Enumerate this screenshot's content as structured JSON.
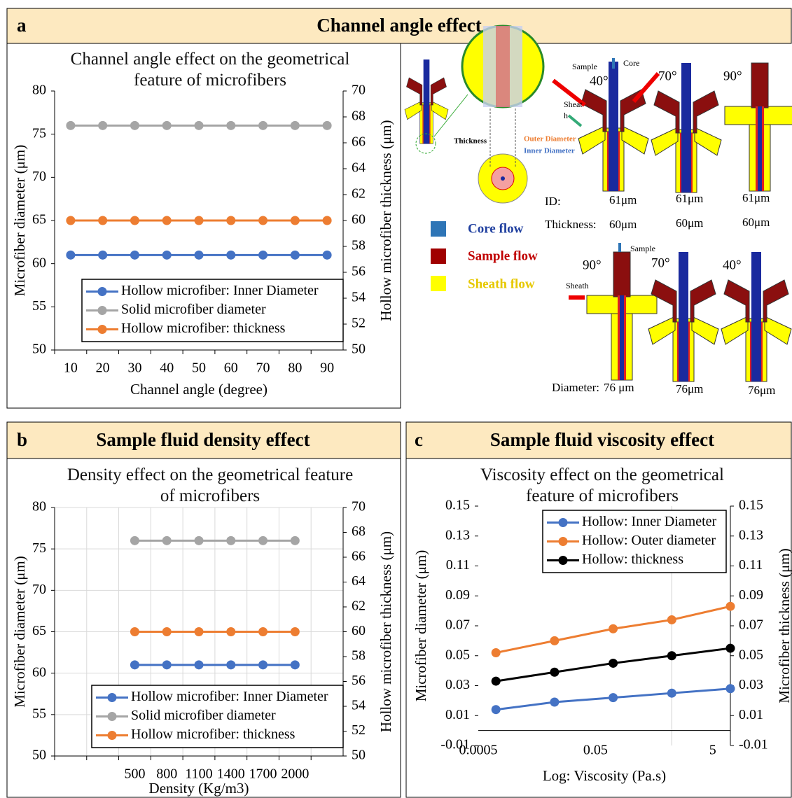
{
  "panels": [
    {
      "letter": "a",
      "title": "Channel angle effect"
    },
    {
      "letter": "b",
      "title": "Sample fluid density effect"
    },
    {
      "letter": "c",
      "title": "Sample fluid viscosity effect"
    }
  ],
  "chart_data": [
    {
      "type": "line",
      "title": "Channel angle effect on the geometrical feature of microfibers",
      "categories": [
        "10",
        "20",
        "30",
        "40",
        "50",
        "60",
        "70",
        "80",
        "90"
      ],
      "xlabel": "Channel angle (degree)",
      "ylabel": "Microfiber diameter (μm)",
      "y2label": "Hollow microfiber thickness (μm)",
      "ylim": [
        50,
        80
      ],
      "yticks": [
        50,
        55,
        60,
        65,
        70,
        75,
        80
      ],
      "y2lim": [
        50,
        70
      ],
      "y2ticks": [
        50,
        52,
        54,
        56,
        58,
        60,
        62,
        64,
        66,
        68,
        70
      ],
      "grid": false,
      "legend": "lower right",
      "series": [
        {
          "name": "Hollow microfiber: Inner Diameter",
          "color": "#4472c4",
          "values": [
            61,
            61,
            61,
            61,
            61,
            61,
            61,
            61,
            61
          ]
        },
        {
          "name": "Solid microfiber diameter",
          "color": "#a5a5a5",
          "values": [
            76,
            76,
            76,
            76,
            76,
            76,
            76,
            76,
            76
          ]
        },
        {
          "name": "Hollow microfiber: thickness",
          "color": "#ed7d31",
          "axis": "y2",
          "values": [
            60,
            60,
            60,
            60,
            60,
            60,
            60,
            60,
            60
          ]
        }
      ]
    },
    {
      "type": "line",
      "title": "Density effect on the geometrical feature of microfibers",
      "categories": [
        null,
        null,
        "500",
        "800",
        "1100",
        "1400",
        "1700",
        "2000",
        null
      ],
      "xlabel": "Density (Kg/m3)",
      "ylabel": "Microfiber diameter (μm)",
      "y2label": "Hollow microfiber thickness (μm)",
      "ylim": [
        50,
        80
      ],
      "yticks": [
        50,
        55,
        60,
        65,
        70,
        75,
        80
      ],
      "y2lim": [
        50,
        70
      ],
      "y2ticks": [
        50,
        52,
        54,
        56,
        58,
        60,
        62,
        64,
        66,
        68,
        70
      ],
      "grid": true,
      "legend": "lower right",
      "series": [
        {
          "name": "Hollow microfiber: Inner Diameter",
          "color": "#4472c4",
          "values": [
            null,
            null,
            61,
            61,
            61,
            61,
            61,
            61,
            null
          ]
        },
        {
          "name": "Solid microfiber diameter",
          "color": "#a5a5a5",
          "values": [
            null,
            null,
            76,
            76,
            76,
            76,
            76,
            76,
            null
          ]
        },
        {
          "name": "Hollow microfiber: thickness",
          "color": "#ed7d31",
          "axis": "y2",
          "values": [
            null,
            null,
            60,
            60,
            60,
            60,
            60,
            60,
            null
          ]
        }
      ]
    },
    {
      "type": "line",
      "title": "Viscosity effect on the geometrical feature of microfibers",
      "x": [
        0.001,
        0.01,
        0.1,
        1,
        10
      ],
      "xscale": "log",
      "xlim": [
        0.0005,
        10
      ],
      "xticks": [
        0.0005,
        0.05,
        5
      ],
      "xlabel": "Log: Viscosity (Pa.s)",
      "ylabel": "Microfiber diameter (μm)",
      "y2label": "Microfiber thickness (μm)",
      "ylim": [
        -0.01,
        0.15
      ],
      "yticks": [
        -0.01,
        0.01,
        0.03,
        0.05,
        0.07,
        0.09,
        0.11,
        0.13,
        0.15
      ],
      "y2lim": [
        -0.01,
        0.15
      ],
      "y2ticks": [
        -0.01,
        0.01,
        0.03,
        0.05,
        0.07,
        0.09,
        0.11,
        0.13,
        0.15
      ],
      "grid": false,
      "legend": "upper right",
      "series": [
        {
          "name": "Hollow: Inner Diameter",
          "color": "#4472c4",
          "values": [
            0.014,
            0.019,
            0.022,
            0.025,
            0.028
          ]
        },
        {
          "name": "Hollow: Outer diameter",
          "color": "#ed7d31",
          "values": [
            0.052,
            0.06,
            0.068,
            0.074,
            0.083
          ]
        },
        {
          "name": "Hollow: thickness",
          "color": "#000000",
          "axis": "y2",
          "values": [
            0.033,
            0.039,
            0.045,
            0.05,
            0.055
          ]
        }
      ]
    }
  ],
  "diagram": {
    "inset": {
      "thickness": "Thickness",
      "outer": "Outer Diameter",
      "inner": "Inner Diameter"
    },
    "top": {
      "sample": "Sample",
      "core": "Core",
      "sheath": [
        "Sheat",
        "h"
      ],
      "angles": [
        "40°",
        "70°",
        "90°"
      ],
      "id_label": "ID:",
      "ids": [
        "61μm",
        "61μm",
        "61μm"
      ],
      "thickness_label": "Thickness:",
      "thicknesses": [
        "60μm",
        "60μm",
        "60μm"
      ]
    },
    "legend": [
      "Core flow",
      "Sample flow",
      "Sheath flow"
    ],
    "bottom": {
      "sample": "Sample",
      "sheath": "Sheath",
      "angles": [
        "90°",
        "70°",
        "40°"
      ],
      "diameter_label": "Diameter:",
      "diameters": [
        "76 μm",
        "76μm",
        "76μm"
      ]
    }
  }
}
